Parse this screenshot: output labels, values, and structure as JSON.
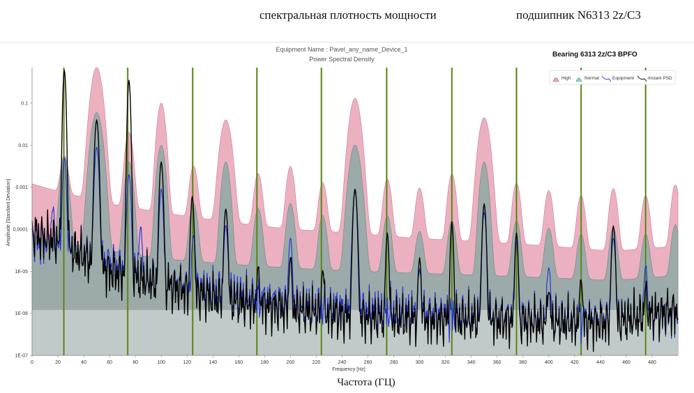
{
  "header": {
    "left_caption": "спектральная плотность мощности",
    "right_caption": "подшипник N6313 2z/C3"
  },
  "chart_header": {
    "equipment_name": "Equipment Name : Pavel_any_name_Device_1",
    "chart_title": "Power Spectral Density",
    "bearing_label": "Bearing 6313 2z/C3 BPFO"
  },
  "footer": {
    "caption": "Частота (ГЦ)"
  },
  "colors": {
    "high_fill": "#e9a3b5",
    "normal_fill": "#93aaa6",
    "equipment_line": "#1f2fd1",
    "instant_line": "#000000",
    "marker_line": "#6e9a24"
  },
  "chart_data": {
    "type": "area",
    "xlabel": "Frequency [Hz]",
    "ylabel": "Amplitude [Standard Deviation]",
    "xlim": [
      0,
      500
    ],
    "ylim": [
      1e-07,
      0.7
    ],
    "y_scale": "log",
    "grid": false,
    "legend_position": "top-right",
    "x_ticks": [
      "0",
      "20",
      "40",
      "60",
      "80",
      "100",
      "120",
      "140",
      "160",
      "180",
      "200",
      "220",
      "240",
      "260",
      "280",
      "300",
      "320",
      "340",
      "360",
      "380",
      "400",
      "420",
      "440",
      "460",
      "480"
    ],
    "y_ticks": [
      "1E-07",
      "1E-06",
      "1E-05",
      "0.0001",
      "0.001",
      "0.01",
      "0.1"
    ],
    "legend": [
      "High",
      "Normal",
      "Equipment",
      "Instant PSD"
    ],
    "bpfo_markers_hz": [
      24.6,
      74.0,
      124.3,
      174.0,
      224.0,
      274.5,
      325.0,
      375.0,
      425.0,
      475.0
    ],
    "series": [
      {
        "name": "High",
        "baseline": [
          [
            0,
            0.0012
          ],
          [
            20,
            0.0008
          ],
          [
            60,
            0.0004
          ],
          [
            100,
            0.00025
          ],
          [
            150,
            0.00015
          ],
          [
            200,
            0.0001
          ],
          [
            250,
            8e-05
          ],
          [
            300,
            6e-05
          ],
          [
            350,
            5e-05
          ],
          [
            400,
            4e-05
          ],
          [
            450,
            3e-05
          ],
          [
            500,
            4e-05
          ]
        ],
        "peaks": [
          [
            25,
            0.005,
            3
          ],
          [
            50,
            0.7,
            4
          ],
          [
            75,
            0.02,
            3
          ],
          [
            100,
            0.1,
            3
          ],
          [
            125,
            0.003,
            3
          ],
          [
            150,
            0.04,
            4
          ],
          [
            175,
            0.002,
            3
          ],
          [
            200,
            0.003,
            3
          ],
          [
            225,
            0.0012,
            3
          ],
          [
            250,
            0.13,
            4
          ],
          [
            275,
            0.0015,
            3
          ],
          [
            300,
            0.0009,
            3
          ],
          [
            325,
            0.002,
            3
          ],
          [
            350,
            0.045,
            4
          ],
          [
            375,
            0.0012,
            3
          ],
          [
            400,
            0.0008,
            3
          ],
          [
            425,
            0.0006,
            3
          ],
          [
            450,
            0.0009,
            3
          ],
          [
            475,
            0.0006,
            3
          ],
          [
            498,
            0.0011,
            3
          ]
        ]
      },
      {
        "name": "Normal",
        "baseline": [
          [
            0,
            7e-05
          ],
          [
            20,
            5e-05
          ],
          [
            60,
            3e-05
          ],
          [
            100,
            2e-05
          ],
          [
            150,
            1.5e-05
          ],
          [
            200,
            1.2e-05
          ],
          [
            250,
            1e-05
          ],
          [
            300,
            9e-06
          ],
          [
            350,
            8e-06
          ],
          [
            400,
            7e-06
          ],
          [
            450,
            6e-06
          ],
          [
            500,
            8e-06
          ]
        ],
        "peaks": [
          [
            25,
            0.005,
            3
          ],
          [
            50,
            0.06,
            4
          ],
          [
            75,
            0.004,
            3
          ],
          [
            100,
            0.01,
            3
          ],
          [
            125,
            0.0004,
            3
          ],
          [
            150,
            0.004,
            3
          ],
          [
            175,
            0.0003,
            3
          ],
          [
            200,
            0.0004,
            3
          ],
          [
            225,
            0.0002,
            3
          ],
          [
            250,
            0.01,
            4
          ],
          [
            275,
            0.0002,
            3
          ],
          [
            300,
            8e-05,
            3
          ],
          [
            325,
            0.00015,
            3
          ],
          [
            350,
            0.004,
            3
          ],
          [
            375,
            0.00015,
            3
          ],
          [
            400,
            0.0001,
            3
          ],
          [
            425,
            7e-05,
            3
          ],
          [
            450,
            0.0001,
            3
          ],
          [
            475,
            7e-05,
            3
          ],
          [
            498,
            0.00012,
            3
          ]
        ]
      },
      {
        "name": "Equipment",
        "baseline": [
          [
            0,
            6e-05
          ],
          [
            20,
            4e-05
          ],
          [
            60,
            1.5e-05
          ],
          [
            100,
            5e-06
          ],
          [
            150,
            3e-06
          ],
          [
            200,
            1.5e-06
          ],
          [
            250,
            1.2e-06
          ],
          [
            300,
            1e-06
          ],
          [
            350,
            8e-07
          ],
          [
            400,
            7e-07
          ],
          [
            450,
            7e-07
          ],
          [
            500,
            1e-06
          ]
        ],
        "peaks": [
          [
            16,
            0.00025,
            1.2
          ],
          [
            25,
            0.005,
            1.2
          ],
          [
            50,
            0.009,
            1.4
          ],
          [
            75,
            0.002,
            1.3
          ],
          [
            84,
            0.0001,
            1.2
          ],
          [
            100,
            0.0009,
            1.3
          ],
          [
            125,
            7e-05,
            1.2
          ],
          [
            150,
            0.00012,
            1.3
          ],
          [
            200,
            6e-05,
            1.2
          ],
          [
            250,
            0.0008,
            1.5
          ],
          [
            300,
            1e-05,
            1.2
          ],
          [
            350,
            0.00025,
            1.4
          ],
          [
            375,
            5e-05,
            1.2
          ],
          [
            400,
            1.2e-05,
            1.2
          ],
          [
            450,
            6e-05,
            1.4
          ],
          [
            475,
            1.2e-05,
            1.2
          ]
        ]
      },
      {
        "name": "Instant PSD",
        "baseline": [
          [
            0,
            8e-05
          ],
          [
            20,
            5e-05
          ],
          [
            60,
            1e-05
          ],
          [
            100,
            5e-06
          ],
          [
            150,
            2e-06
          ],
          [
            200,
            1.2e-06
          ],
          [
            250,
            8e-07
          ],
          [
            300,
            7e-07
          ],
          [
            350,
            7e-07
          ],
          [
            400,
            6e-07
          ],
          [
            450,
            6e-07
          ],
          [
            500,
            1.2e-06
          ]
        ],
        "peaks": [
          [
            25,
            0.6,
            1
          ],
          [
            50,
            0.04,
            1.3
          ],
          [
            75,
            0.35,
            1
          ],
          [
            100,
            0.004,
            1.2
          ],
          [
            124,
            0.0006,
            1.1
          ],
          [
            150,
            0.0003,
            1.2
          ],
          [
            175,
            1e-05,
            1
          ],
          [
            200,
            2e-05,
            1
          ],
          [
            225,
            1e-05,
            1
          ],
          [
            250,
            0.0009,
            1.3
          ],
          [
            275,
            8e-05,
            1
          ],
          [
            300,
            2e-05,
            1
          ],
          [
            325,
            0.00015,
            1
          ],
          [
            350,
            0.0004,
            1.2
          ],
          [
            375,
            8e-05,
            1
          ],
          [
            400,
            3e-06,
            1
          ],
          [
            425,
            6e-06,
            1
          ],
          [
            450,
            0.00012,
            1.2
          ],
          [
            475,
            3e-06,
            1
          ]
        ]
      }
    ]
  }
}
